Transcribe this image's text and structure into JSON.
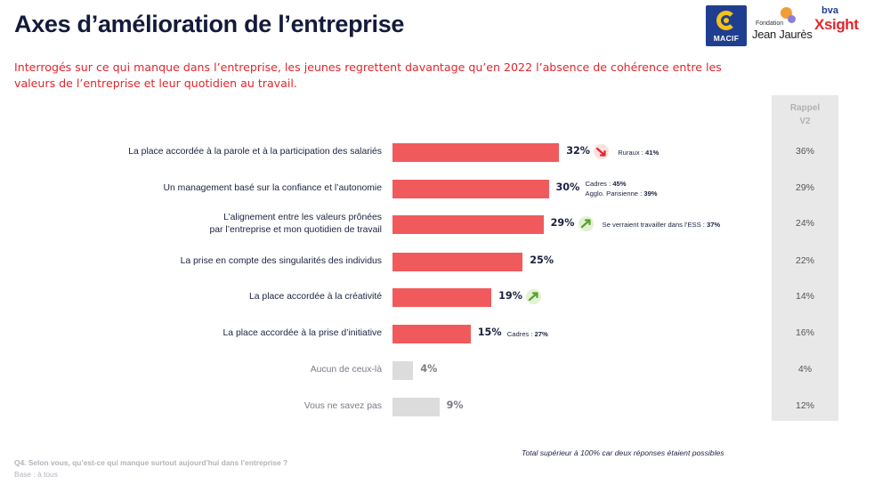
{
  "header": {
    "title": "Axes d’amélioration de l’entreprise",
    "subtitle": "Interrogés sur ce qui manque dans l’entreprise, les jeunes regrettent davantage qu’en 2022 l’absence de cohérence entre les valeurs de l’entreprise et leur quotidien au travail."
  },
  "logos": {
    "macif": "MACIF",
    "jean_jaures_small": "Fondation",
    "jean_jaures_big": "Jean Jaurès",
    "bva_small": "bva",
    "bva_big": "Xsight"
  },
  "rappel": {
    "line1": "Rappel",
    "line2": "V2"
  },
  "chart_data": {
    "type": "bar",
    "orientation": "horizontal",
    "categories": [
      "La place accordée à la parole et à la participation des salariés",
      "Un management basé sur la confiance et l’autonomie",
      "L’alignement entre les valeurs prônées par l’entreprise et mon quotidien de travail",
      "La prise en compte des singularités des individus",
      "La place accordée à la créativité",
      "La place accordée à la prise d’initiative",
      "Aucun de ceux-là",
      "Vous ne savez pas"
    ],
    "label_lines": [
      [
        "La place accordée à la parole et à la participation des salariés"
      ],
      [
        "Un management basé sur la confiance et l’autonomie"
      ],
      [
        "L’alignement entre les valeurs prônées",
        "par l’entreprise et mon quotidien de travail"
      ],
      [
        "La prise en compte des singularités des individus"
      ],
      [
        "La place accordée à la créativité"
      ],
      [
        "La place accordée à la prise d’initiative"
      ],
      [
        "Aucun de ceux-là"
      ],
      [
        "Vous ne savez pas"
      ]
    ],
    "values": [
      32,
      30,
      29,
      25,
      19,
      15,
      4,
      9
    ],
    "value_labels": [
      "32%",
      "30%",
      "29%",
      "25%",
      "19%",
      "15%",
      "4%",
      "9%"
    ],
    "muted": [
      false,
      false,
      false,
      false,
      false,
      false,
      true,
      true
    ],
    "trend": [
      "down",
      "none",
      "up",
      "none",
      "up",
      "none",
      "none",
      "none"
    ],
    "notes": [
      [
        {
          "label": "Ruraux : ",
          "value": "41%"
        }
      ],
      [
        {
          "label": "Cadres : ",
          "value": "45%"
        },
        {
          "label": "Agglo. Parisienne : ",
          "value": "39%"
        }
      ],
      [
        {
          "label": "Se verraient travailler dans l’ESS : ",
          "value": "37%"
        }
      ],
      [],
      [],
      [
        {
          "label": "Cadres : ",
          "value": "27%"
        }
      ],
      [],
      []
    ],
    "rappel_v2": [
      "36%",
      "29%",
      "24%",
      "22%",
      "14%",
      "16%",
      "4%",
      "12%"
    ],
    "unit": "%",
    "colors": {
      "main": "#f15a5c",
      "muted": "#dcdcdc",
      "trend_down": "#e3262c",
      "trend_up": "#5aa02c"
    }
  },
  "footer": {
    "total_note": "Total supérieur à 100% car deux réponses étaient possibles",
    "question": "Q4. Selon vous, qu’est-ce qui manque surtout aujourd’hui dans l’entreprise ?",
    "base": "Base : à tous"
  }
}
